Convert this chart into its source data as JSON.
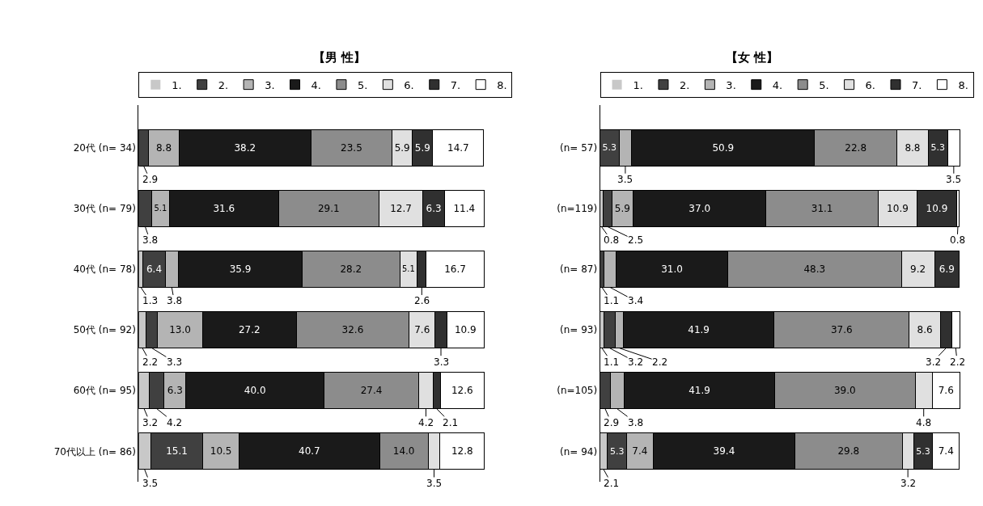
{
  "chart_data": [
    {
      "type": "bar",
      "orientation": "horizontal",
      "stacked": true,
      "title": "【男 性】",
      "categories": [
        "20代 (n= 34)",
        "30代 (n= 79)",
        "40代 (n= 78)",
        "50代 (n= 92)",
        "60代 (n= 95)",
        "70代以上 (n= 86)"
      ],
      "xlim": [
        0,
        100.2
      ],
      "tick_labels": "y",
      "legend": "top",
      "data_labels": true,
      "series": [
        {
          "name": "1.",
          "color": "#c8c8c8",
          "values": [
            0,
            0,
            1.3,
            2.2,
            3.2,
            3.5
          ],
          "value_labels": [
            null,
            null,
            "1.3",
            "2.2",
            "3.2",
            "3.5"
          ]
        },
        {
          "name": "2.",
          "color": "#404040",
          "values": [
            2.9,
            3.8,
            6.4,
            3.3,
            4.2,
            15.1
          ],
          "value_labels": [
            "2.9",
            "3.8",
            "6.4",
            "3.3",
            "4.2",
            "15.1"
          ]
        },
        {
          "name": "3.",
          "color": "#b4b4b4",
          "values": [
            8.8,
            5.1,
            3.8,
            13.0,
            6.3,
            10.5
          ],
          "value_labels": [
            "8.8",
            "5.1",
            "3.8",
            "13.0",
            "6.3",
            "10.5"
          ]
        },
        {
          "name": "4.",
          "color": "#1a1a1a",
          "values": [
            38.2,
            31.6,
            35.9,
            27.2,
            40.0,
            40.7
          ],
          "value_labels": [
            "38.2",
            "31.6",
            "35.9",
            "27.2",
            "40.0",
            "40.7"
          ]
        },
        {
          "name": "5.",
          "color": "#8c8c8c",
          "values": [
            23.5,
            29.1,
            28.2,
            32.6,
            27.4,
            14.0
          ],
          "value_labels": [
            "23.5",
            "29.1",
            "28.2",
            "32.6",
            "27.4",
            "14.0"
          ]
        },
        {
          "name": "6.",
          "color": "#e0e0e0",
          "values": [
            5.9,
            12.7,
            5.1,
            7.6,
            4.2,
            3.5
          ],
          "value_labels": [
            "5.9",
            "12.7",
            "5.1",
            "7.6",
            "4.2",
            "3.5"
          ]
        },
        {
          "name": "7.",
          "color": "#303030",
          "values": [
            5.9,
            6.3,
            2.6,
            3.3,
            2.1,
            0
          ],
          "value_labels": [
            "5.9",
            "6.3",
            "2.6",
            "3.3",
            "2.1",
            null
          ]
        },
        {
          "name": "8.",
          "color": "#ffffff",
          "values": [
            14.7,
            11.4,
            16.7,
            10.9,
            12.6,
            12.8
          ],
          "value_labels": [
            "14.7",
            "11.4",
            "16.7",
            "10.9",
            "12.6",
            "12.8"
          ]
        }
      ]
    },
    {
      "type": "bar",
      "orientation": "horizontal",
      "stacked": true,
      "title": "【女 性】",
      "categories": [
        "(n= 57)",
        "(n=119)",
        "(n= 87)",
        "(n= 93)",
        "(n=105)",
        "(n= 94)"
      ],
      "xlim": [
        0,
        100.2
      ],
      "tick_labels": "y",
      "legend": "top",
      "data_labels": true,
      "series": [
        {
          "name": "1.",
          "color": "#c8c8c8",
          "values": [
            0,
            0.8,
            0,
            1.1,
            0,
            2.1
          ],
          "value_labels": [
            null,
            "0.8",
            null,
            "1.1",
            null,
            "2.1"
          ]
        },
        {
          "name": "2.",
          "color": "#404040",
          "values": [
            5.3,
            2.5,
            1.1,
            3.2,
            2.9,
            5.3
          ],
          "value_labels": [
            "5.3",
            "2.5",
            "1.1",
            "3.2",
            "2.9",
            "5.3"
          ]
        },
        {
          "name": "3.",
          "color": "#b4b4b4",
          "values": [
            3.5,
            5.9,
            3.4,
            2.2,
            3.8,
            7.4
          ],
          "value_labels": [
            "3.5",
            "5.9",
            "3.4",
            "2.2",
            "3.8",
            "7.4"
          ]
        },
        {
          "name": "4.",
          "color": "#1a1a1a",
          "values": [
            50.9,
            37.0,
            31.0,
            41.9,
            41.9,
            39.4
          ],
          "value_labels": [
            "50.9",
            "37.0",
            "31.0",
            "41.9",
            "41.9",
            "39.4"
          ]
        },
        {
          "name": "5.",
          "color": "#8c8c8c",
          "values": [
            22.8,
            31.1,
            48.3,
            37.6,
            39.0,
            29.8
          ],
          "value_labels": [
            "22.8",
            "31.1",
            "48.3",
            "37.6",
            "39.0",
            "29.8"
          ]
        },
        {
          "name": "6.",
          "color": "#e0e0e0",
          "values": [
            8.8,
            10.9,
            9.2,
            8.6,
            4.8,
            3.2
          ],
          "value_labels": [
            "8.8",
            "10.9",
            "9.2",
            "8.6",
            "4.8",
            "3.2"
          ]
        },
        {
          "name": "7.",
          "color": "#303030",
          "values": [
            5.3,
            10.9,
            6.9,
            3.2,
            0,
            5.3
          ],
          "value_labels": [
            "5.3",
            "10.9",
            "6.9",
            "3.2",
            null,
            "5.3"
          ]
        },
        {
          "name": "8.",
          "color": "#ffffff",
          "values": [
            3.5,
            0.8,
            0,
            2.2,
            7.6,
            7.4
          ],
          "value_labels": [
            "3.5",
            "0.8",
            null,
            "2.2",
            "7.6",
            "7.4"
          ]
        }
      ]
    }
  ]
}
